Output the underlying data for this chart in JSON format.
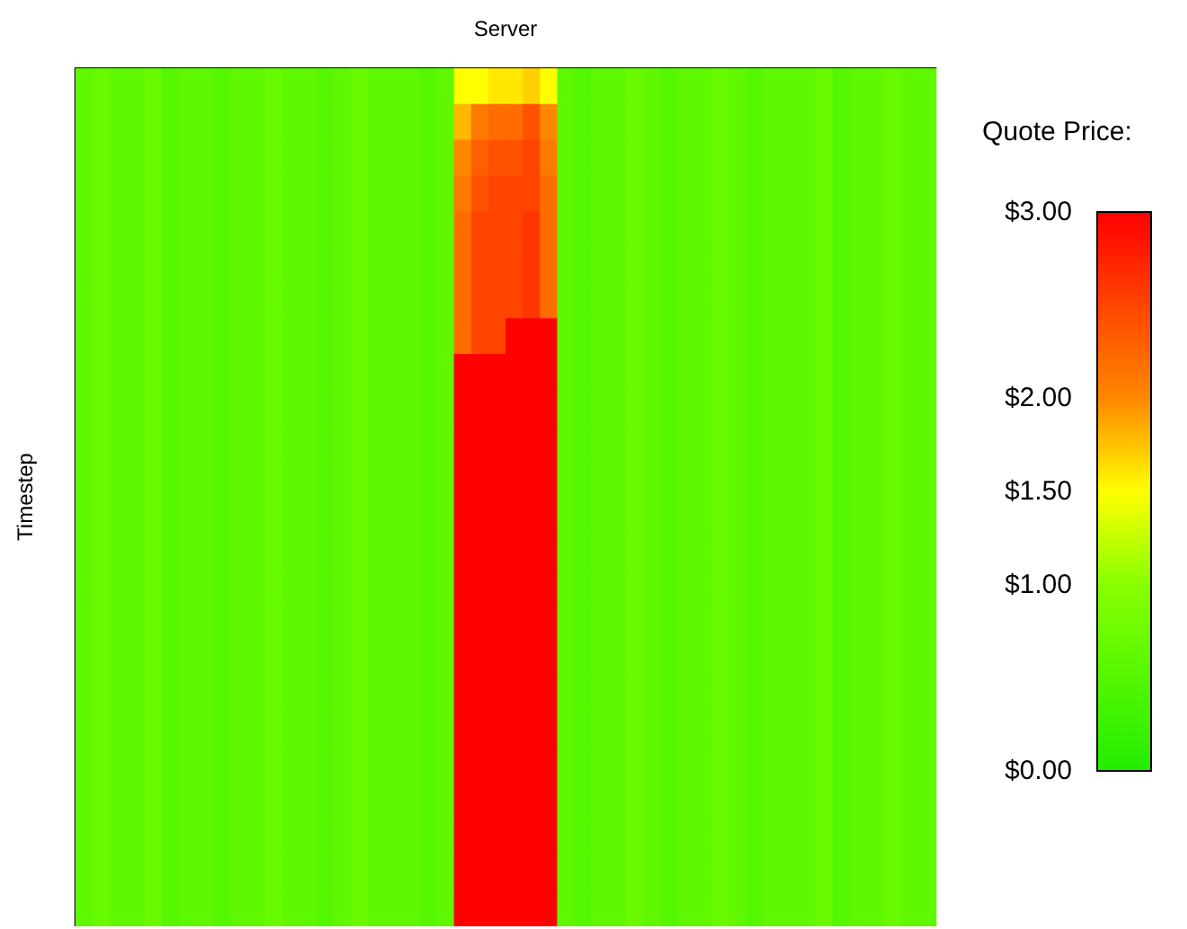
{
  "chart_data": {
    "type": "heatmap",
    "xlabel": "Server",
    "ylabel": "Timestep",
    "clabel": "Quote Price:",
    "categories": [
      null,
      null,
      null,
      null,
      null,
      null,
      null,
      null,
      null,
      null,
      null,
      null,
      null,
      null,
      null,
      null,
      null,
      null,
      null,
      null,
      null,
      null,
      null,
      null,
      null,
      null,
      null,
      null,
      null,
      null,
      null,
      null,
      null,
      null,
      null,
      null,
      null,
      null,
      null,
      null,
      null,
      null,
      null,
      null,
      null,
      null,
      null,
      null,
      null,
      null
    ],
    "y_categories": [
      null,
      null,
      null,
      null,
      null,
      null,
      null,
      null,
      null,
      null,
      null,
      null,
      null,
      null,
      null,
      null,
      null,
      null,
      null,
      null,
      null,
      null,
      null,
      null
    ],
    "clim": [
      0,
      3
    ],
    "cticks": [
      {
        "value": 0,
        "label": "$0.00"
      },
      {
        "value": 1,
        "label": "$1.00"
      },
      {
        "value": 1.5,
        "label": "$1.50"
      },
      {
        "value": 2,
        "label": "$2.00"
      },
      {
        "value": 3,
        "label": "$3.00"
      }
    ],
    "colors": [
      "#22ee00",
      "#88ff00",
      "#ffff00",
      "#ff8800",
      "#ff0000"
    ],
    "cells": [
      [
        0.6,
        0.7,
        0.6,
        0.6,
        0.7,
        0.5,
        0.6,
        0.6,
        0.5,
        0.6,
        0.6,
        0.7,
        0.6,
        0.6,
        0.5,
        0.6,
        0.7,
        0.6,
        0.6,
        0.6,
        0.5,
        0.6,
        1.5,
        1.5,
        1.6,
        1.6,
        1.7,
        1.5,
        0.6,
        0.5,
        0.6,
        0.6,
        0.7,
        0.6,
        0.5,
        0.6,
        0.6,
        0.7,
        0.6,
        0.5,
        0.6,
        0.6,
        0.6,
        0.7,
        0.5,
        0.6,
        0.6,
        0.7,
        0.6,
        0.6
      ],
      [
        0.6,
        0.7,
        0.6,
        0.6,
        0.7,
        0.5,
        0.6,
        0.6,
        0.5,
        0.6,
        0.6,
        0.7,
        0.6,
        0.6,
        0.5,
        0.6,
        0.7,
        0.6,
        0.6,
        0.6,
        0.5,
        0.6,
        1.8,
        2.1,
        2.2,
        2.2,
        2.4,
        2.0,
        0.6,
        0.5,
        0.6,
        0.6,
        0.7,
        0.6,
        0.5,
        0.6,
        0.6,
        0.7,
        0.6,
        0.5,
        0.6,
        0.6,
        0.6,
        0.7,
        0.5,
        0.6,
        0.6,
        0.7,
        0.6,
        0.6
      ],
      [
        0.6,
        0.7,
        0.6,
        0.6,
        0.7,
        0.5,
        0.6,
        0.6,
        0.5,
        0.6,
        0.6,
        0.7,
        0.6,
        0.6,
        0.5,
        0.6,
        0.7,
        0.6,
        0.6,
        0.6,
        0.5,
        0.6,
        2.0,
        2.3,
        2.4,
        2.4,
        2.5,
        2.1,
        0.6,
        0.5,
        0.6,
        0.6,
        0.7,
        0.6,
        0.5,
        0.6,
        0.6,
        0.7,
        0.6,
        0.5,
        0.6,
        0.6,
        0.6,
        0.7,
        0.5,
        0.6,
        0.6,
        0.7,
        0.6,
        0.6
      ],
      [
        0.6,
        0.7,
        0.6,
        0.6,
        0.7,
        0.5,
        0.6,
        0.6,
        0.5,
        0.6,
        0.6,
        0.7,
        0.6,
        0.6,
        0.5,
        0.6,
        0.7,
        0.6,
        0.6,
        0.6,
        0.5,
        0.6,
        2.1,
        2.4,
        2.5,
        2.5,
        2.5,
        2.2,
        0.6,
        0.5,
        0.6,
        0.6,
        0.7,
        0.6,
        0.5,
        0.6,
        0.6,
        0.7,
        0.6,
        0.5,
        0.6,
        0.6,
        0.6,
        0.7,
        0.5,
        0.6,
        0.6,
        0.7,
        0.6,
        0.6
      ],
      [
        0.6,
        0.7,
        0.6,
        0.6,
        0.7,
        0.5,
        0.6,
        0.6,
        0.5,
        0.6,
        0.6,
        0.7,
        0.6,
        0.6,
        0.5,
        0.6,
        0.7,
        0.6,
        0.6,
        0.6,
        0.5,
        0.6,
        2.2,
        2.5,
        2.5,
        2.5,
        2.6,
        2.2,
        0.6,
        0.5,
        0.6,
        0.6,
        0.7,
        0.6,
        0.5,
        0.6,
        0.6,
        0.7,
        0.6,
        0.5,
        0.6,
        0.6,
        0.6,
        0.7,
        0.5,
        0.6,
        0.6,
        0.7,
        0.6,
        0.6
      ],
      [
        0.6,
        0.7,
        0.6,
        0.6,
        0.7,
        0.5,
        0.6,
        0.6,
        0.5,
        0.6,
        0.6,
        0.7,
        0.6,
        0.6,
        0.5,
        0.6,
        0.7,
        0.6,
        0.6,
        0.6,
        0.5,
        0.6,
        2.2,
        2.5,
        2.5,
        2.5,
        2.6,
        2.2,
        0.6,
        0.5,
        0.6,
        0.6,
        0.7,
        0.6,
        0.5,
        0.6,
        0.6,
        0.7,
        0.6,
        0.5,
        0.6,
        0.6,
        0.6,
        0.7,
        0.5,
        0.6,
        0.6,
        0.7,
        0.6,
        0.6
      ],
      [
        0.6,
        0.7,
        0.6,
        0.6,
        0.7,
        0.5,
        0.6,
        0.6,
        0.5,
        0.6,
        0.6,
        0.7,
        0.6,
        0.6,
        0.5,
        0.6,
        0.7,
        0.6,
        0.6,
        0.6,
        0.5,
        0.6,
        2.2,
        2.5,
        2.5,
        2.5,
        2.6,
        2.2,
        0.6,
        0.5,
        0.6,
        0.6,
        0.7,
        0.6,
        0.5,
        0.6,
        0.6,
        0.7,
        0.6,
        0.5,
        0.6,
        0.6,
        0.6,
        0.7,
        0.5,
        0.6,
        0.6,
        0.7,
        0.6,
        0.6
      ],
      [
        0.6,
        0.7,
        0.6,
        0.6,
        0.7,
        0.5,
        0.6,
        0.6,
        0.5,
        0.6,
        0.6,
        0.7,
        0.6,
        0.6,
        0.5,
        0.6,
        0.7,
        0.6,
        0.6,
        0.6,
        0.5,
        0.6,
        2.2,
        2.5,
        2.5,
        3.0,
        3.0,
        3.0,
        0.6,
        0.5,
        0.6,
        0.6,
        0.7,
        0.6,
        0.5,
        0.6,
        0.6,
        0.7,
        0.6,
        0.5,
        0.6,
        0.6,
        0.6,
        0.7,
        0.5,
        0.6,
        0.6,
        0.7,
        0.6,
        0.6
      ],
      [
        0.6,
        0.7,
        0.6,
        0.6,
        0.7,
        0.5,
        0.6,
        0.6,
        0.5,
        0.6,
        0.6,
        0.7,
        0.6,
        0.6,
        0.5,
        0.6,
        0.7,
        0.6,
        0.6,
        0.6,
        0.5,
        0.6,
        3.0,
        3.0,
        3.0,
        3.0,
        3.0,
        3.0,
        0.6,
        0.5,
        0.6,
        0.6,
        0.7,
        0.6,
        0.5,
        0.6,
        0.6,
        0.7,
        0.6,
        0.5,
        0.6,
        0.6,
        0.6,
        0.7,
        0.5,
        0.6,
        0.6,
        0.7,
        0.6,
        0.6
      ],
      [
        0.6,
        0.7,
        0.6,
        0.6,
        0.7,
        0.5,
        0.6,
        0.6,
        0.5,
        0.6,
        0.6,
        0.7,
        0.6,
        0.6,
        0.5,
        0.6,
        0.7,
        0.6,
        0.6,
        0.6,
        0.5,
        0.6,
        3.0,
        3.0,
        3.0,
        3.0,
        3.0,
        3.0,
        0.6,
        0.5,
        0.6,
        0.6,
        0.7,
        0.6,
        0.5,
        0.6,
        0.6,
        0.7,
        0.6,
        0.5,
        0.6,
        0.6,
        0.6,
        0.7,
        0.5,
        0.6,
        0.6,
        0.7,
        0.6,
        0.6
      ],
      [
        0.6,
        0.7,
        0.6,
        0.6,
        0.7,
        0.5,
        0.6,
        0.6,
        0.5,
        0.6,
        0.6,
        0.7,
        0.6,
        0.6,
        0.5,
        0.6,
        0.7,
        0.6,
        0.6,
        0.6,
        0.5,
        0.6,
        3.0,
        3.0,
        3.0,
        3.0,
        3.0,
        3.0,
        0.6,
        0.5,
        0.6,
        0.6,
        0.7,
        0.6,
        0.5,
        0.6,
        0.6,
        0.7,
        0.6,
        0.5,
        0.6,
        0.6,
        0.6,
        0.7,
        0.5,
        0.6,
        0.6,
        0.7,
        0.6,
        0.6
      ],
      [
        0.6,
        0.7,
        0.6,
        0.6,
        0.7,
        0.5,
        0.6,
        0.6,
        0.5,
        0.6,
        0.6,
        0.7,
        0.6,
        0.6,
        0.5,
        0.6,
        0.7,
        0.6,
        0.6,
        0.6,
        0.5,
        0.6,
        3.0,
        3.0,
        3.0,
        3.0,
        3.0,
        3.0,
        0.6,
        0.5,
        0.6,
        0.6,
        0.7,
        0.6,
        0.5,
        0.6,
        0.6,
        0.7,
        0.6,
        0.5,
        0.6,
        0.6,
        0.6,
        0.7,
        0.5,
        0.6,
        0.6,
        0.7,
        0.6,
        0.6
      ],
      [
        0.6,
        0.7,
        0.6,
        0.6,
        0.7,
        0.5,
        0.6,
        0.6,
        0.5,
        0.6,
        0.6,
        0.7,
        0.6,
        0.6,
        0.5,
        0.6,
        0.7,
        0.6,
        0.6,
        0.6,
        0.5,
        0.6,
        3.0,
        3.0,
        3.0,
        3.0,
        3.0,
        3.0,
        0.6,
        0.5,
        0.6,
        0.6,
        0.7,
        0.6,
        0.5,
        0.6,
        0.6,
        0.7,
        0.6,
        0.5,
        0.6,
        0.6,
        0.6,
        0.7,
        0.5,
        0.6,
        0.6,
        0.7,
        0.6,
        0.6
      ],
      [
        0.6,
        0.7,
        0.6,
        0.6,
        0.7,
        0.5,
        0.6,
        0.6,
        0.5,
        0.6,
        0.6,
        0.7,
        0.6,
        0.6,
        0.5,
        0.6,
        0.7,
        0.6,
        0.6,
        0.6,
        0.5,
        0.6,
        3.0,
        3.0,
        3.0,
        3.0,
        3.0,
        3.0,
        0.6,
        0.5,
        0.6,
        0.6,
        0.7,
        0.6,
        0.5,
        0.6,
        0.6,
        0.7,
        0.6,
        0.5,
        0.6,
        0.6,
        0.6,
        0.7,
        0.5,
        0.6,
        0.6,
        0.7,
        0.6,
        0.6
      ],
      [
        0.6,
        0.7,
        0.6,
        0.6,
        0.7,
        0.5,
        0.6,
        0.6,
        0.5,
        0.6,
        0.6,
        0.7,
        0.6,
        0.6,
        0.5,
        0.6,
        0.7,
        0.6,
        0.6,
        0.6,
        0.5,
        0.6,
        3.0,
        3.0,
        3.0,
        3.0,
        3.0,
        3.0,
        0.6,
        0.5,
        0.6,
        0.6,
        0.7,
        0.6,
        0.5,
        0.6,
        0.6,
        0.7,
        0.6,
        0.5,
        0.6,
        0.6,
        0.6,
        0.7,
        0.5,
        0.6,
        0.6,
        0.7,
        0.6,
        0.6
      ],
      [
        0.6,
        0.7,
        0.6,
        0.6,
        0.7,
        0.5,
        0.6,
        0.6,
        0.5,
        0.6,
        0.6,
        0.7,
        0.6,
        0.6,
        0.5,
        0.6,
        0.7,
        0.6,
        0.6,
        0.6,
        0.5,
        0.6,
        3.0,
        3.0,
        3.0,
        3.0,
        3.0,
        3.0,
        0.6,
        0.5,
        0.6,
        0.6,
        0.7,
        0.6,
        0.5,
        0.6,
        0.6,
        0.7,
        0.6,
        0.5,
        0.6,
        0.6,
        0.6,
        0.7,
        0.5,
        0.6,
        0.6,
        0.7,
        0.6,
        0.6
      ],
      [
        0.6,
        0.7,
        0.6,
        0.6,
        0.7,
        0.5,
        0.6,
        0.6,
        0.5,
        0.6,
        0.6,
        0.7,
        0.6,
        0.6,
        0.5,
        0.6,
        0.7,
        0.6,
        0.6,
        0.6,
        0.5,
        0.6,
        3.0,
        3.0,
        3.0,
        3.0,
        3.0,
        3.0,
        0.6,
        0.5,
        0.6,
        0.6,
        0.7,
        0.6,
        0.5,
        0.6,
        0.6,
        0.7,
        0.6,
        0.5,
        0.6,
        0.6,
        0.6,
        0.7,
        0.5,
        0.6,
        0.6,
        0.7,
        0.6,
        0.6
      ],
      [
        0.6,
        0.7,
        0.6,
        0.6,
        0.7,
        0.5,
        0.6,
        0.6,
        0.5,
        0.6,
        0.6,
        0.7,
        0.6,
        0.6,
        0.5,
        0.6,
        0.7,
        0.6,
        0.6,
        0.6,
        0.5,
        0.6,
        3.0,
        3.0,
        3.0,
        3.0,
        3.0,
        3.0,
        0.6,
        0.5,
        0.6,
        0.6,
        0.7,
        0.6,
        0.5,
        0.6,
        0.6,
        0.7,
        0.6,
        0.5,
        0.6,
        0.6,
        0.6,
        0.7,
        0.5,
        0.6,
        0.6,
        0.7,
        0.6,
        0.6
      ],
      [
        0.6,
        0.7,
        0.6,
        0.6,
        0.7,
        0.5,
        0.6,
        0.6,
        0.5,
        0.6,
        0.6,
        0.7,
        0.6,
        0.6,
        0.5,
        0.6,
        0.7,
        0.6,
        0.6,
        0.6,
        0.5,
        0.6,
        3.0,
        3.0,
        3.0,
        3.0,
        3.0,
        3.0,
        0.6,
        0.5,
        0.6,
        0.6,
        0.7,
        0.6,
        0.5,
        0.6,
        0.6,
        0.7,
        0.6,
        0.5,
        0.6,
        0.6,
        0.6,
        0.7,
        0.5,
        0.6,
        0.6,
        0.7,
        0.6,
        0.6
      ],
      [
        0.6,
        0.7,
        0.6,
        0.6,
        0.7,
        0.5,
        0.6,
        0.6,
        0.5,
        0.6,
        0.6,
        0.7,
        0.6,
        0.6,
        0.5,
        0.6,
        0.7,
        0.6,
        0.6,
        0.6,
        0.5,
        0.6,
        3.0,
        3.0,
        3.0,
        3.0,
        3.0,
        3.0,
        0.6,
        0.5,
        0.6,
        0.6,
        0.7,
        0.6,
        0.5,
        0.6,
        0.6,
        0.7,
        0.6,
        0.5,
        0.6,
        0.6,
        0.6,
        0.7,
        0.5,
        0.6,
        0.6,
        0.7,
        0.6,
        0.6
      ],
      [
        0.6,
        0.7,
        0.6,
        0.6,
        0.7,
        0.5,
        0.6,
        0.6,
        0.5,
        0.6,
        0.6,
        0.7,
        0.6,
        0.6,
        0.5,
        0.6,
        0.7,
        0.6,
        0.6,
        0.6,
        0.5,
        0.6,
        3.0,
        3.0,
        3.0,
        3.0,
        3.0,
        3.0,
        0.6,
        0.5,
        0.6,
        0.6,
        0.7,
        0.6,
        0.5,
        0.6,
        0.6,
        0.7,
        0.6,
        0.5,
        0.6,
        0.6,
        0.6,
        0.7,
        0.5,
        0.6,
        0.6,
        0.7,
        0.6,
        0.6
      ],
      [
        0.6,
        0.7,
        0.6,
        0.6,
        0.7,
        0.5,
        0.6,
        0.6,
        0.5,
        0.6,
        0.6,
        0.7,
        0.6,
        0.6,
        0.5,
        0.6,
        0.7,
        0.6,
        0.6,
        0.6,
        0.5,
        0.6,
        3.0,
        3.0,
        3.0,
        3.0,
        3.0,
        3.0,
        0.6,
        0.5,
        0.6,
        0.6,
        0.7,
        0.6,
        0.5,
        0.6,
        0.6,
        0.7,
        0.6,
        0.5,
        0.6,
        0.6,
        0.6,
        0.7,
        0.5,
        0.6,
        0.6,
        0.7,
        0.6,
        0.6
      ],
      [
        0.6,
        0.7,
        0.6,
        0.6,
        0.7,
        0.5,
        0.6,
        0.6,
        0.5,
        0.6,
        0.6,
        0.7,
        0.6,
        0.6,
        0.5,
        0.6,
        0.7,
        0.6,
        0.6,
        0.6,
        0.5,
        0.6,
        3.0,
        3.0,
        3.0,
        3.0,
        3.0,
        3.0,
        0.6,
        0.5,
        0.6,
        0.6,
        0.7,
        0.6,
        0.5,
        0.6,
        0.6,
        0.7,
        0.6,
        0.5,
        0.6,
        0.6,
        0.6,
        0.7,
        0.5,
        0.6,
        0.6,
        0.7,
        0.6,
        0.6
      ],
      [
        0.6,
        0.7,
        0.6,
        0.6,
        0.7,
        0.5,
        0.6,
        0.6,
        0.5,
        0.6,
        0.6,
        0.7,
        0.6,
        0.6,
        0.5,
        0.6,
        0.7,
        0.6,
        0.6,
        0.6,
        0.5,
        0.6,
        3.0,
        3.0,
        3.0,
        3.0,
        3.0,
        3.0,
        0.6,
        0.5,
        0.6,
        0.6,
        0.7,
        0.6,
        0.5,
        0.6,
        0.6,
        0.7,
        0.6,
        0.5,
        0.6,
        0.6,
        0.6,
        0.7,
        0.5,
        0.6,
        0.6,
        0.7,
        0.6,
        0.6
      ]
    ]
  }
}
